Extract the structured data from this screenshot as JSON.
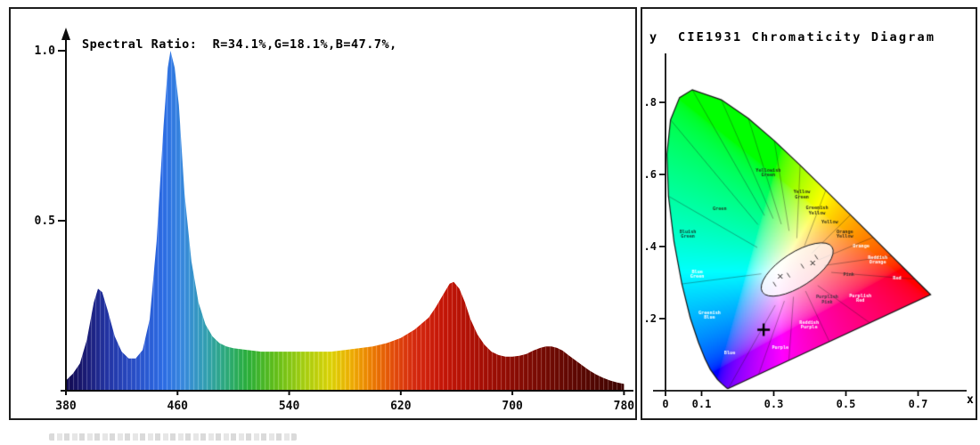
{
  "window": {
    "background": "#ffffff",
    "border_color": "#1c1c1c"
  },
  "chart_data": [
    {
      "type": "area",
      "title": "Spectral Ratio:  R=34.1%,G=18.1%,B=47.7%,",
      "xlabel": "",
      "ylabel": "",
      "xlim": [
        380,
        780
      ],
      "ylim": [
        0,
        1.05
      ],
      "grid": false,
      "x_ticks": [
        {
          "v": 380,
          "label": "380"
        },
        {
          "v": 460,
          "label": "460"
        },
        {
          "v": 540,
          "label": "540"
        },
        {
          "v": 620,
          "label": "620"
        },
        {
          "v": 700,
          "label": "700"
        },
        {
          "v": 780,
          "label": "780"
        }
      ],
      "y_ticks": [
        {
          "v": 1.0,
          "label": "1.0"
        },
        {
          "v": 0.5,
          "label": "0.5"
        }
      ],
      "x": [
        380,
        385,
        390,
        395,
        400,
        403,
        406,
        410,
        415,
        420,
        425,
        430,
        435,
        440,
        445,
        450,
        453,
        455,
        458,
        461,
        465,
        470,
        475,
        480,
        485,
        490,
        495,
        500,
        510,
        520,
        530,
        540,
        550,
        560,
        570,
        580,
        590,
        600,
        610,
        620,
        630,
        640,
        645,
        650,
        655,
        658,
        662,
        666,
        670,
        675,
        680,
        685,
        690,
        695,
        700,
        705,
        710,
        715,
        720,
        724,
        728,
        732,
        736,
        740,
        745,
        750,
        755,
        760,
        765,
        770,
        775,
        780
      ],
      "values": [
        0.03,
        0.05,
        0.08,
        0.15,
        0.26,
        0.3,
        0.29,
        0.235,
        0.16,
        0.115,
        0.095,
        0.095,
        0.12,
        0.21,
        0.44,
        0.78,
        0.95,
        1.0,
        0.95,
        0.84,
        0.58,
        0.38,
        0.26,
        0.195,
        0.16,
        0.14,
        0.13,
        0.125,
        0.12,
        0.115,
        0.115,
        0.115,
        0.115,
        0.115,
        0.115,
        0.12,
        0.125,
        0.13,
        0.14,
        0.155,
        0.18,
        0.215,
        0.245,
        0.28,
        0.315,
        0.32,
        0.3,
        0.26,
        0.21,
        0.165,
        0.135,
        0.115,
        0.105,
        0.1,
        0.1,
        0.103,
        0.108,
        0.118,
        0.126,
        0.13,
        0.13,
        0.126,
        0.118,
        0.105,
        0.09,
        0.075,
        0.06,
        0.048,
        0.038,
        0.03,
        0.024,
        0.02
      ],
      "gradient_stops": [
        {
          "wl": 380,
          "color": "#120a52"
        },
        {
          "wl": 395,
          "color": "#1c1e7a"
        },
        {
          "wl": 410,
          "color": "#2436a8"
        },
        {
          "wl": 430,
          "color": "#2b52cc"
        },
        {
          "wl": 450,
          "color": "#2e6fe8"
        },
        {
          "wl": 465,
          "color": "#3b8ee0"
        },
        {
          "wl": 480,
          "color": "#35a3b5"
        },
        {
          "wl": 495,
          "color": "#2fae7d"
        },
        {
          "wl": 510,
          "color": "#2cb23c"
        },
        {
          "wl": 530,
          "color": "#65c21c"
        },
        {
          "wl": 550,
          "color": "#a8d214"
        },
        {
          "wl": 570,
          "color": "#e0d60a"
        },
        {
          "wl": 585,
          "color": "#f2b006"
        },
        {
          "wl": 600,
          "color": "#ef7d04"
        },
        {
          "wl": 615,
          "color": "#e74e0c"
        },
        {
          "wl": 630,
          "color": "#d92b10"
        },
        {
          "wl": 650,
          "color": "#c91708"
        },
        {
          "wl": 675,
          "color": "#ad1005"
        },
        {
          "wl": 700,
          "color": "#8f0d04"
        },
        {
          "wl": 730,
          "color": "#6f0a03"
        },
        {
          "wl": 760,
          "color": "#520702"
        },
        {
          "wl": 780,
          "color": "#3f0502"
        }
      ]
    },
    {
      "type": "chromaticity",
      "title": "CIE1931 Chromaticity Diagram",
      "xlabel": "x",
      "ylabel": "y",
      "xlim": [
        0,
        0.8
      ],
      "ylim": [
        0,
        0.9
      ],
      "x_ticks": [
        {
          "v": 0,
          "label": "0"
        },
        {
          "v": 0.1,
          "label": "0.1"
        },
        {
          "v": 0.3,
          "label": "0.3"
        },
        {
          "v": 0.5,
          "label": "0.5"
        },
        {
          "v": 0.7,
          "label": "0.7"
        }
      ],
      "y_ticks": [
        {
          "v": 0.2,
          "label": ".2"
        },
        {
          "v": 0.4,
          "label": ".4"
        },
        {
          "v": 0.6,
          "label": ".6"
        },
        {
          "v": 0.8,
          "label": ".8"
        }
      ],
      "marker": {
        "x": 0.272,
        "y": 0.168,
        "symbol": "+"
      },
      "white_ellipse": {
        "cx": 0.365,
        "cy": 0.335,
        "rx": 0.115,
        "ry": 0.047,
        "rot_deg": -33
      },
      "inner_marks": [
        [
          0.318,
          0.316
        ],
        [
          0.408,
          0.353
        ]
      ],
      "locus": [
        [
          380,
          0.1741,
          0.005
        ],
        [
          390,
          0.1738,
          0.0049
        ],
        [
          400,
          0.1733,
          0.0048
        ],
        [
          410,
          0.1726,
          0.0048
        ],
        [
          420,
          0.1714,
          0.0051
        ],
        [
          430,
          0.1689,
          0.0069
        ],
        [
          440,
          0.1644,
          0.0109
        ],
        [
          450,
          0.1566,
          0.0177
        ],
        [
          460,
          0.144,
          0.0297
        ],
        [
          470,
          0.1241,
          0.0578
        ],
        [
          475,
          0.1096,
          0.0868
        ],
        [
          480,
          0.0913,
          0.1327
        ],
        [
          485,
          0.0687,
          0.2007
        ],
        [
          490,
          0.0454,
          0.295
        ],
        [
          495,
          0.0235,
          0.4127
        ],
        [
          500,
          0.0082,
          0.5384
        ],
        [
          505,
          0.0039,
          0.6548
        ],
        [
          510,
          0.0139,
          0.7502
        ],
        [
          515,
          0.0389,
          0.812
        ],
        [
          520,
          0.0743,
          0.8338
        ],
        [
          530,
          0.1547,
          0.8059
        ],
        [
          540,
          0.2296,
          0.7543
        ],
        [
          550,
          0.3016,
          0.6923
        ],
        [
          560,
          0.3731,
          0.6245
        ],
        [
          570,
          0.4441,
          0.5547
        ],
        [
          580,
          0.5125,
          0.4866
        ],
        [
          590,
          0.5752,
          0.4242
        ],
        [
          600,
          0.627,
          0.3725
        ],
        [
          610,
          0.6658,
          0.334
        ],
        [
          620,
          0.6915,
          0.3083
        ],
        [
          630,
          0.7079,
          0.292
        ],
        [
          640,
          0.719,
          0.2809
        ],
        [
          650,
          0.726,
          0.274
        ],
        [
          660,
          0.73,
          0.27
        ],
        [
          680,
          0.7334,
          0.2666
        ],
        [
          700,
          0.7347,
          0.2653
        ]
      ],
      "region_line_hub": [
        0.36,
        0.335
      ],
      "region_lines": [
        [
          0.0454,
          0.295
        ],
        [
          0.0082,
          0.5384
        ],
        [
          0.0139,
          0.7502
        ],
        [
          0.0743,
          0.8338
        ],
        [
          0.1547,
          0.8059
        ],
        [
          0.2296,
          0.7543
        ],
        [
          0.3016,
          0.6923
        ],
        [
          0.3731,
          0.6245
        ],
        [
          0.4441,
          0.5547
        ],
        [
          0.5125,
          0.4866
        ],
        [
          0.5752,
          0.4242
        ],
        [
          0.627,
          0.3725
        ],
        [
          0.6915,
          0.3083
        ],
        [
          0.566,
          0.187
        ],
        [
          0.454,
          0.135
        ],
        [
          0.342,
          0.083
        ],
        [
          0.258,
          0.044
        ],
        [
          0.174,
          0.005
        ]
      ],
      "region_labels": [
        {
          "t": "Green",
          "x": 0.15,
          "y": 0.5,
          "c": "#1e3a1e"
        },
        {
          "t": "Yellowish\nGreen",
          "x": 0.285,
          "y": 0.6,
          "c": "#24321c"
        },
        {
          "t": "Yellow\nGreen",
          "x": 0.378,
          "y": 0.54,
          "c": "#2c321a"
        },
        {
          "t": "Greenish\nYellow",
          "x": 0.42,
          "y": 0.495,
          "c": "#33301a"
        },
        {
          "t": "Yellow",
          "x": 0.455,
          "y": 0.462,
          "c": "#343018"
        },
        {
          "t": "Orange\nYellow",
          "x": 0.497,
          "y": 0.43,
          "c": "#3a2c16"
        },
        {
          "t": "Orange",
          "x": 0.542,
          "y": 0.396,
          "c": "#ffffff"
        },
        {
          "t": "Reddish\nOrange",
          "x": 0.588,
          "y": 0.358,
          "c": "#ffffff"
        },
        {
          "t": "Red",
          "x": 0.642,
          "y": 0.308,
          "c": "#ffffff"
        },
        {
          "t": "Pink",
          "x": 0.508,
          "y": 0.318,
          "c": "#443333"
        },
        {
          "t": "Purplish\nPink",
          "x": 0.448,
          "y": 0.248,
          "c": "#443344"
        },
        {
          "t": "Purplish\nRed",
          "x": 0.54,
          "y": 0.252,
          "c": "#ffffff"
        },
        {
          "t": "Reddish\nPurple",
          "x": 0.398,
          "y": 0.178,
          "c": "#ffffff"
        },
        {
          "t": "Purple",
          "x": 0.318,
          "y": 0.115,
          "c": "#ffffff"
        },
        {
          "t": "Blue",
          "x": 0.178,
          "y": 0.1,
          "c": "#ffffff"
        },
        {
          "t": "Greenish\nBlue",
          "x": 0.122,
          "y": 0.205,
          "c": "#ffffff"
        },
        {
          "t": "Blue\nGreen",
          "x": 0.088,
          "y": 0.318,
          "c": "#ffffff"
        },
        {
          "t": "Bluish\nGreen",
          "x": 0.062,
          "y": 0.43,
          "c": "#133a2e"
        }
      ]
    }
  ]
}
